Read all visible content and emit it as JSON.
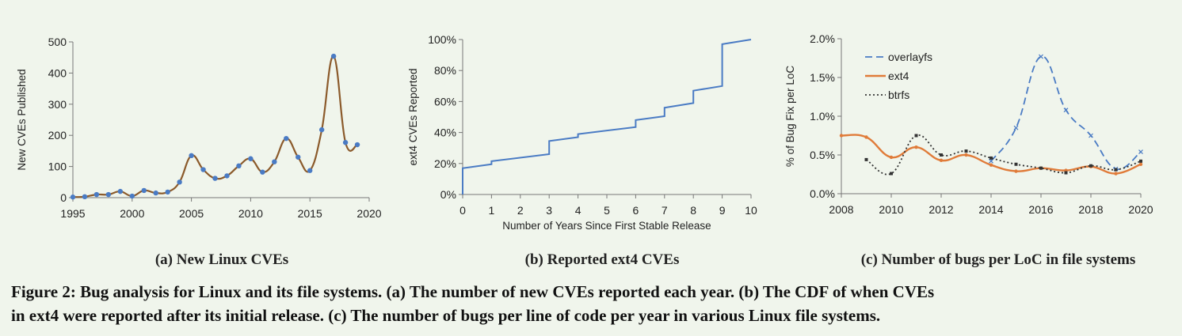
{
  "figure": {
    "caption_line1": "Figure 2: Bug analysis for Linux and its file systems. (a) The number of new CVEs reported each year. (b) The CDF of when CVEs",
    "caption_line2": "in ext4 were reported after its initial release. (c) The number of bugs per line of code per year in various Linux file systems."
  },
  "chart_data": [
    {
      "type": "line",
      "subcaption": "(a) New Linux CVEs",
      "title": "",
      "xlabel": "",
      "ylabel": "New CVEs Published",
      "xlim": [
        1995,
        2020
      ],
      "ylim": [
        0,
        500
      ],
      "xticks": [
        "1995",
        "2000",
        "2005",
        "2010",
        "2015",
        "2020"
      ],
      "yticks": [
        "0",
        "100",
        "200",
        "300",
        "400",
        "500"
      ],
      "colors": {
        "line": "#8b5a2b",
        "marker": "#4a7bc4"
      },
      "smooth": true,
      "x": [
        1995,
        1996,
        1997,
        1998,
        1999,
        2000,
        2001,
        2002,
        2003,
        2004,
        2005,
        2006,
        2007,
        2008,
        2009,
        2010,
        2011,
        2012,
        2013,
        2014,
        2015,
        2016,
        2017,
        2018,
        2019
      ],
      "values": [
        2,
        3,
        10,
        10,
        20,
        5,
        23,
        15,
        18,
        50,
        135,
        90,
        62,
        70,
        102,
        125,
        82,
        115,
        190,
        130,
        87,
        218,
        454,
        177,
        170
      ]
    },
    {
      "type": "line",
      "subcaption": "(b) Reported ext4 CVEs",
      "title": "",
      "xlabel": "Number of Years Since First Stable Release",
      "ylabel": "ext4 CVEs Reported",
      "xlim": [
        0,
        10
      ],
      "ylim": [
        0,
        1
      ],
      "xticks": [
        "0",
        "1",
        "2",
        "3",
        "4",
        "5",
        "6",
        "7",
        "8",
        "9",
        "10"
      ],
      "yticks": [
        "0%",
        "20%",
        "40%",
        "60%",
        "80%",
        "100%"
      ],
      "colors": {
        "line": "#4a7bc4"
      },
      "step": true,
      "x": [
        0,
        0,
        1,
        1,
        3,
        3,
        4,
        4,
        6,
        6,
        7,
        7,
        8,
        8,
        9,
        9,
        10
      ],
      "values": [
        0,
        0.17,
        0.195,
        0.215,
        0.26,
        0.345,
        0.37,
        0.39,
        0.435,
        0.48,
        0.505,
        0.56,
        0.59,
        0.67,
        0.7,
        0.97,
        1.0
      ]
    },
    {
      "type": "line",
      "subcaption": "(c) Number of bugs per LoC in file systems",
      "title": "",
      "xlabel": "",
      "ylabel": "% of Bug Fix per LoC",
      "xlim": [
        2008,
        2020
      ],
      "ylim": [
        0,
        2.0
      ],
      "xticks": [
        "2008",
        "2010",
        "2012",
        "2014",
        "2016",
        "2018",
        "2020"
      ],
      "yticks": [
        "0.0%",
        "0.5%",
        "1.0%",
        "1.5%",
        "2.0%"
      ],
      "legend_position": "top-left",
      "series": [
        {
          "name": "overlayfs",
          "color": "#4a7bc4",
          "dash": "9,5",
          "marker": "x",
          "x": [
            2014,
            2015,
            2016,
            2017,
            2018,
            2019,
            2020
          ],
          "values": [
            0.42,
            0.85,
            1.77,
            1.08,
            0.75,
            0.32,
            0.54
          ]
        },
        {
          "name": "ext4",
          "color": "#e07b39",
          "dash": "",
          "marker": "dot",
          "x": [
            2008,
            2009,
            2010,
            2011,
            2012,
            2013,
            2014,
            2015,
            2016,
            2017,
            2018,
            2019,
            2020
          ],
          "values": [
            0.75,
            0.73,
            0.47,
            0.6,
            0.43,
            0.5,
            0.37,
            0.29,
            0.33,
            0.3,
            0.35,
            0.26,
            0.38
          ]
        },
        {
          "name": "btrfs",
          "color": "#333333",
          "dash": "2,3",
          "marker": "square",
          "x": [
            2009,
            2010,
            2011,
            2012,
            2013,
            2014,
            2015,
            2016,
            2017,
            2018,
            2019,
            2020
          ],
          "values": [
            0.44,
            0.26,
            0.75,
            0.5,
            0.55,
            0.46,
            0.38,
            0.33,
            0.27,
            0.36,
            0.31,
            0.42
          ]
        }
      ]
    }
  ]
}
